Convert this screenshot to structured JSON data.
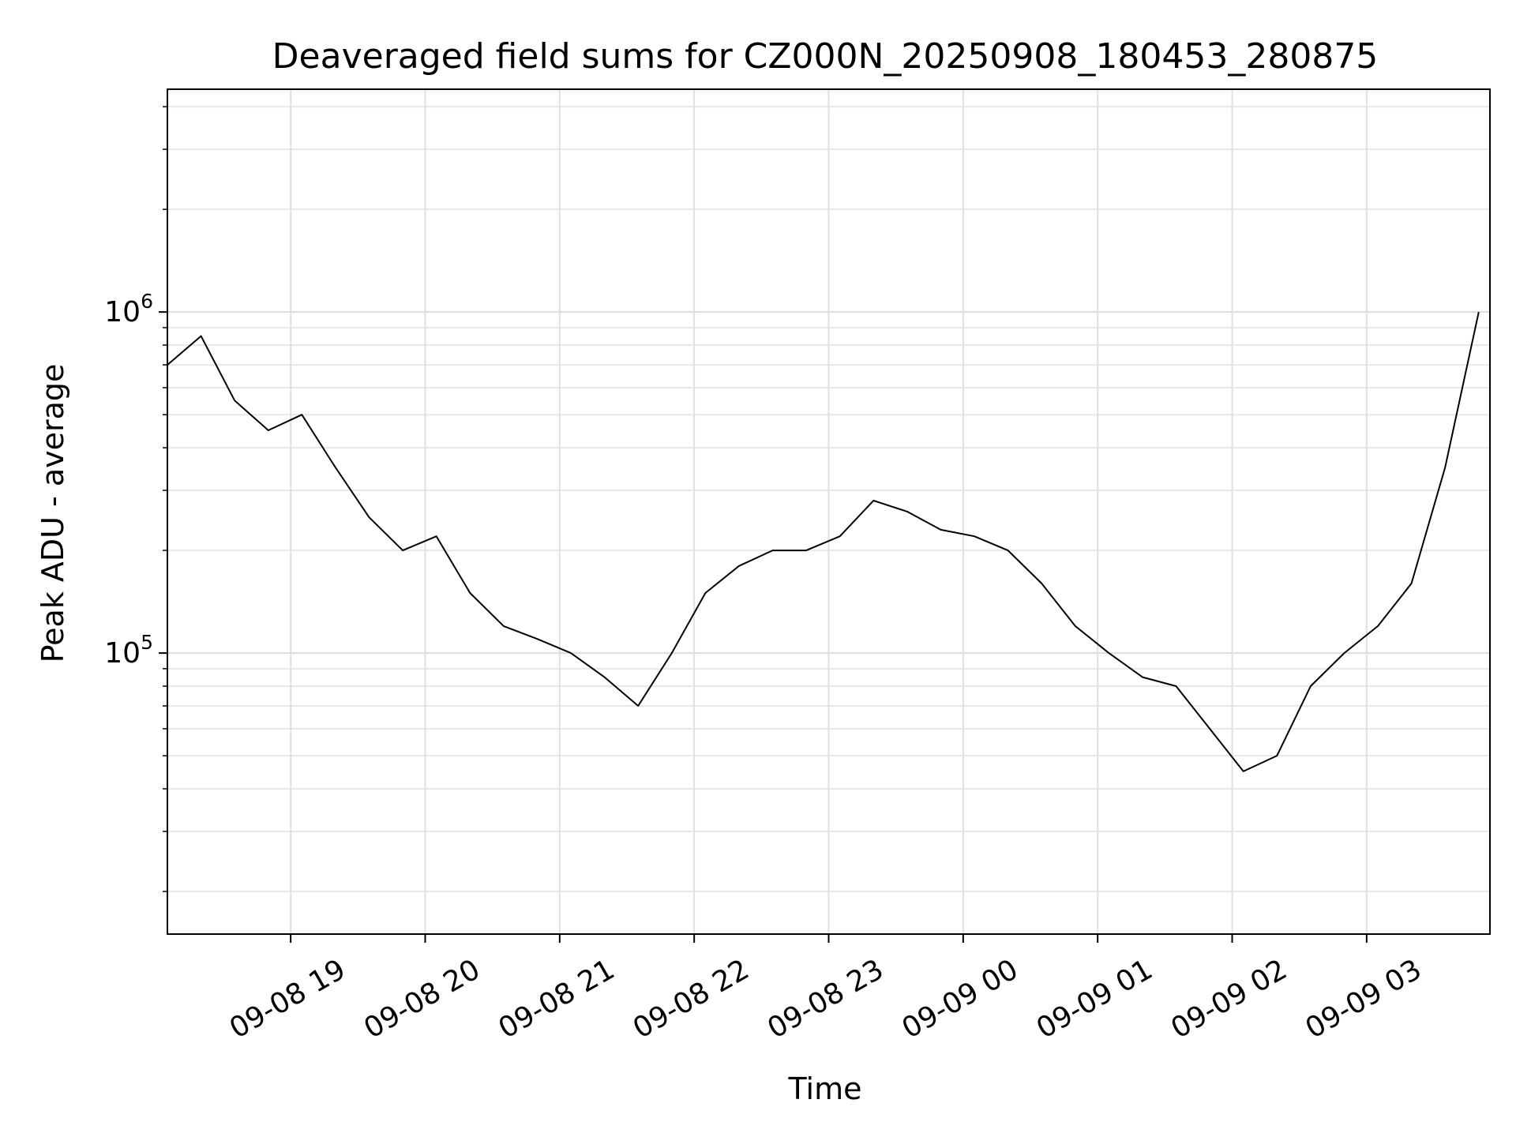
{
  "chart_data": {
    "type": "line",
    "title": "Deaveraged field sums for CZ000N_20250908_180453_280875",
    "xlabel": "Time",
    "ylabel": "Peak ADU - average",
    "y_scale": "log",
    "ylim": [
      15000,
      4500000
    ],
    "xlim": [
      "2025-09-08 18:05",
      "2025-09-09 03:55"
    ],
    "grid": true,
    "line_color": "#000000",
    "x_ticks": [
      {
        "label": "09-08 19",
        "t": "2025-09-08 19:00"
      },
      {
        "label": "09-08 20",
        "t": "2025-09-08 20:00"
      },
      {
        "label": "09-08 21",
        "t": "2025-09-08 21:00"
      },
      {
        "label": "09-08 22",
        "t": "2025-09-08 22:00"
      },
      {
        "label": "09-08 23",
        "t": "2025-09-08 23:00"
      },
      {
        "label": "09-09 00",
        "t": "2025-09-09 00:00"
      },
      {
        "label": "09-09 01",
        "t": "2025-09-09 01:00"
      },
      {
        "label": "09-09 02",
        "t": "2025-09-09 02:00"
      },
      {
        "label": "09-09 03",
        "t": "2025-09-09 03:00"
      }
    ],
    "y_ticks": [
      {
        "base": "10",
        "exp": "5",
        "value": 100000
      },
      {
        "base": "10",
        "exp": "6",
        "value": 1000000
      }
    ],
    "series": [
      {
        "x": [
          "2025-09-08 18:05",
          "2025-09-08 18:20",
          "2025-09-08 18:35",
          "2025-09-08 18:50",
          "2025-09-08 19:05",
          "2025-09-08 19:20",
          "2025-09-08 19:35",
          "2025-09-08 19:50",
          "2025-09-08 20:05",
          "2025-09-08 20:20",
          "2025-09-08 20:35",
          "2025-09-08 20:50",
          "2025-09-08 21:05",
          "2025-09-08 21:20",
          "2025-09-08 21:35",
          "2025-09-08 21:50",
          "2025-09-08 22:05",
          "2025-09-08 22:20",
          "2025-09-08 22:35",
          "2025-09-08 22:50",
          "2025-09-08 23:05",
          "2025-09-08 23:20",
          "2025-09-08 23:35",
          "2025-09-08 23:50",
          "2025-09-09 00:05",
          "2025-09-09 00:20",
          "2025-09-09 00:35",
          "2025-09-09 00:50",
          "2025-09-09 01:05",
          "2025-09-09 01:20",
          "2025-09-09 01:35",
          "2025-09-09 01:50",
          "2025-09-09 02:05",
          "2025-09-09 02:20",
          "2025-09-09 02:35",
          "2025-09-09 02:50",
          "2025-09-09 03:05",
          "2025-09-09 03:20",
          "2025-09-09 03:35",
          "2025-09-09 03:50"
        ],
        "y": [
          700000,
          850000,
          550000,
          450000,
          500000,
          350000,
          250000,
          200000,
          220000,
          150000,
          120000,
          110000,
          100000,
          85000,
          70000,
          100000,
          150000,
          180000,
          200000,
          200000,
          220000,
          280000,
          260000,
          230000,
          220000,
          200000,
          160000,
          120000,
          100000,
          85000,
          80000,
          60000,
          45000,
          50000,
          80000,
          100000,
          120000,
          160000,
          350000,
          1000000
        ]
      }
    ]
  }
}
